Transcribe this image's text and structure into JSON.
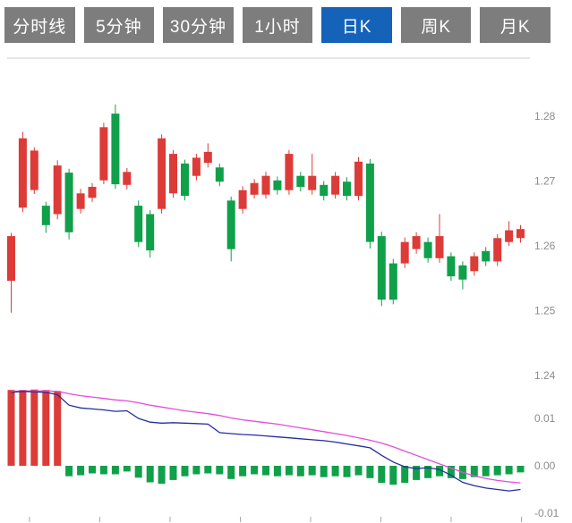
{
  "tabs": {
    "items": [
      {
        "label": "分时线",
        "active": false
      },
      {
        "label": "5分钟",
        "active": false
      },
      {
        "label": "30分钟",
        "active": false
      },
      {
        "label": "1小时",
        "active": false
      },
      {
        "label": "日K",
        "active": true
      },
      {
        "label": "周K",
        "active": false
      },
      {
        "label": "月K",
        "active": false
      }
    ]
  },
  "colors": {
    "up_candle": "#dd3b38",
    "down_candle": "#10a04a",
    "dea_line": "#e24ddb",
    "dif_line": "#232e9e",
    "tab_bg": "#7d7d7d",
    "tab_active_bg": "#1463b8",
    "tab_text": "#ffffff",
    "axis_text": "#8c8c8c",
    "border": "#cccccc",
    "tick": "#aaaaaa"
  },
  "chart_data": [
    {
      "type": "candlestick",
      "timeframe": "日K",
      "title": "",
      "xlabel": "",
      "ylabel": "",
      "ylim": [
        1.2385,
        1.2849
      ],
      "grid": false,
      "yticks": {
        "labels": [
          "1.28",
          "1.27",
          "1.26",
          "1.25",
          "1.24"
        ],
        "values": [
          1.28,
          1.27,
          1.26,
          1.25,
          1.24
        ]
      },
      "candle_format": [
        "open",
        "high",
        "low",
        "close"
      ],
      "candles": [
        [
          1.2546,
          1.262,
          1.2497,
          1.2615
        ],
        [
          1.2659,
          1.2776,
          1.2652,
          1.2766
        ],
        [
          1.2686,
          1.2752,
          1.268,
          1.2747
        ],
        [
          1.2662,
          1.2668,
          1.262,
          1.2632
        ],
        [
          1.2649,
          1.2732,
          1.2641,
          1.2724
        ],
        [
          1.2713,
          1.2719,
          1.261,
          1.2621
        ],
        [
          1.2657,
          1.2688,
          1.265,
          1.2681
        ],
        [
          1.2674,
          1.2697,
          1.2668,
          1.2691
        ],
        [
          1.2701,
          1.279,
          1.2695,
          1.2783
        ],
        [
          1.2804,
          1.2818,
          1.2688,
          1.2695
        ],
        [
          1.2694,
          1.272,
          1.2687,
          1.2714
        ],
        [
          1.2662,
          1.267,
          1.2598,
          1.2606
        ],
        [
          1.2649,
          1.2655,
          1.2582,
          1.2593
        ],
        [
          1.2657,
          1.2772,
          1.265,
          1.2766
        ],
        [
          1.2681,
          1.2748,
          1.2674,
          1.2742
        ],
        [
          1.2727,
          1.2733,
          1.267,
          1.2677
        ],
        [
          1.2708,
          1.2742,
          1.2701,
          1.2736
        ],
        [
          1.2728,
          1.2758,
          1.2721,
          1.2745
        ],
        [
          1.2721,
          1.2727,
          1.2692,
          1.2699
        ],
        [
          1.267,
          1.2676,
          1.2576,
          1.2595
        ],
        [
          1.2657,
          1.2692,
          1.265,
          1.2686
        ],
        [
          1.2679,
          1.2703,
          1.2673,
          1.2697
        ],
        [
          1.2679,
          1.2714,
          1.2673,
          1.2708
        ],
        [
          1.2701,
          1.2707,
          1.2679,
          1.2686
        ],
        [
          1.2686,
          1.2748,
          1.2679,
          1.2742
        ],
        [
          1.2708,
          1.2714,
          1.2684,
          1.2691
        ],
        [
          1.2686,
          1.2742,
          1.2679,
          1.2708
        ],
        [
          1.2694,
          1.27,
          1.267,
          1.2677
        ],
        [
          1.2679,
          1.2714,
          1.2673,
          1.2708
        ],
        [
          1.2699,
          1.2706,
          1.267,
          1.2677
        ],
        [
          1.2677,
          1.2737,
          1.267,
          1.273
        ],
        [
          1.2727,
          1.2734,
          1.2596,
          1.2606
        ],
        [
          1.2615,
          1.2622,
          1.2507,
          1.2517
        ],
        [
          1.2573,
          1.258,
          1.251,
          1.2517
        ],
        [
          1.2573,
          1.2613,
          1.2566,
          1.2606
        ],
        [
          1.2595,
          1.2621,
          1.2588,
          1.2615
        ],
        [
          1.2606,
          1.2613,
          1.2574,
          1.2581
        ],
        [
          1.2581,
          1.2649,
          1.2574,
          1.2615
        ],
        [
          1.2584,
          1.259,
          1.2546,
          1.2553
        ],
        [
          1.257,
          1.2576,
          1.2533,
          1.2548
        ],
        [
          1.2561,
          1.259,
          1.2554,
          1.2584
        ],
        [
          1.2592,
          1.2598,
          1.2569,
          1.2576
        ],
        [
          1.2576,
          1.2618,
          1.2569,
          1.2612
        ],
        [
          1.2606,
          1.2638,
          1.26,
          1.2624
        ],
        [
          1.2612,
          1.2632,
          1.2605,
          1.2626
        ]
      ]
    },
    {
      "type": "bar",
      "subtype": "macd-indicator",
      "title": "",
      "ylim": [
        -0.012,
        0.018
      ],
      "grid": false,
      "yticks": {
        "labels": [
          "0.01",
          "0.00",
          "-0.01"
        ],
        "values": [
          0.01,
          0,
          -0.01
        ]
      },
      "histogram": [
        0.016,
        0.016,
        0.0161,
        0.016,
        0.0158,
        -0.0022,
        -0.002,
        -0.0016,
        -0.0018,
        -0.0018,
        -0.0012,
        -0.0025,
        -0.0035,
        -0.0038,
        -0.003,
        -0.0022,
        -0.0018,
        -0.0016,
        -0.0018,
        -0.0028,
        -0.0022,
        -0.0018,
        -0.002,
        -0.0022,
        -0.002,
        -0.0022,
        -0.002,
        -0.0024,
        -0.0022,
        -0.0024,
        -0.002,
        -0.0026,
        -0.0036,
        -0.004,
        -0.0036,
        -0.003,
        -0.0026,
        -0.0022,
        -0.0026,
        -0.0028,
        -0.0024,
        -0.0022,
        -0.002,
        -0.0018,
        -0.0014
      ],
      "series": [
        {
          "name": "DEA",
          "color": "#e24ddb",
          "values": [
            0.0157,
            0.0158,
            0.0158,
            0.0158,
            0.0157,
            0.0152,
            0.0148,
            0.0145,
            0.0142,
            0.0139,
            0.0137,
            0.0133,
            0.0128,
            0.0124,
            0.012,
            0.0116,
            0.0113,
            0.011,
            0.0106,
            0.0101,
            0.0097,
            0.0094,
            0.0091,
            0.0088,
            0.0084,
            0.008,
            0.0076,
            0.0072,
            0.0068,
            0.0064,
            0.0059,
            0.0054,
            0.0048,
            0.004,
            0.0031,
            0.0022,
            0.0013,
            0.0004,
            -0.0005,
            -0.0014,
            -0.0021,
            -0.0027,
            -0.0031,
            -0.0034,
            -0.0036
          ]
        },
        {
          "name": "DIF",
          "color": "#232e9e",
          "values": [
            0.0155,
            0.0157,
            0.0156,
            0.0155,
            0.015,
            0.0128,
            0.0122,
            0.012,
            0.0118,
            0.0115,
            0.0116,
            0.01,
            0.0092,
            0.009,
            0.0091,
            0.009,
            0.0089,
            0.0088,
            0.007,
            0.0068,
            0.0066,
            0.0065,
            0.0063,
            0.0061,
            0.0059,
            0.0057,
            0.0055,
            0.0053,
            0.005,
            0.0046,
            0.0042,
            0.0038,
            0.0022,
            0.0008,
            -0.0002,
            -0.0006,
            -0.0004,
            -0.0008,
            -0.002,
            -0.0035,
            -0.0042,
            -0.0047,
            -0.005,
            -0.0053,
            -0.005
          ]
        }
      ]
    }
  ]
}
